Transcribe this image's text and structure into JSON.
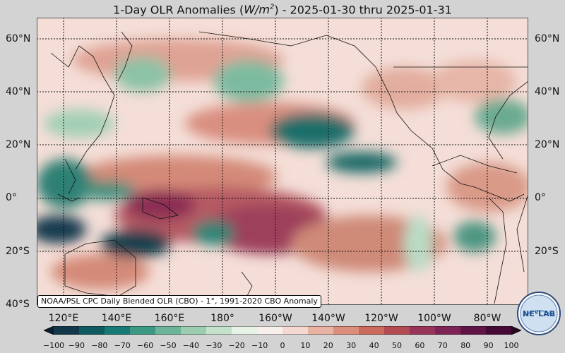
{
  "title": {
    "prefix": "1-Day OLR Anomalies (",
    "unit_base": "W/m",
    "unit_exp": "2",
    "suffix": ") - 2025-01-30 thru 2025-01-31"
  },
  "axes": {
    "lat_labels": [
      "60°N",
      "40°N",
      "20°N",
      "0°",
      "20°S",
      "40°S"
    ],
    "lon_labels": [
      "120°E",
      "140°E",
      "160°E",
      "180°",
      "160°W",
      "140°W",
      "120°W",
      "100°W",
      "80°W"
    ]
  },
  "footnote": "NOAA/PSL CPC Daily Blended OLR (CBO) - 1°, 1991-2020 CBO Anomaly",
  "colorbar": {
    "ticks": [
      "−100",
      "−90",
      "−80",
      "−70",
      "−60",
      "−50",
      "−40",
      "−30",
      "−20",
      "−10",
      "0",
      "10",
      "20",
      "30",
      "40",
      "50",
      "60",
      "70",
      "80",
      "90",
      "100"
    ],
    "colors": [
      "#0b1f33",
      "#13384a",
      "#0f5a5e",
      "#187a74",
      "#3a9883",
      "#6db59a",
      "#9ccdb0",
      "#c4e2cb",
      "#e6f2e6",
      "#f7efec",
      "#f3d9d2",
      "#e9b3a4",
      "#dc8e7c",
      "#c96a5d",
      "#b24c52",
      "#98345a",
      "#7d2356",
      "#611448",
      "#440a35",
      "#2a041f"
    ]
  },
  "logo": {
    "text": "NEⱽLAB"
  }
}
